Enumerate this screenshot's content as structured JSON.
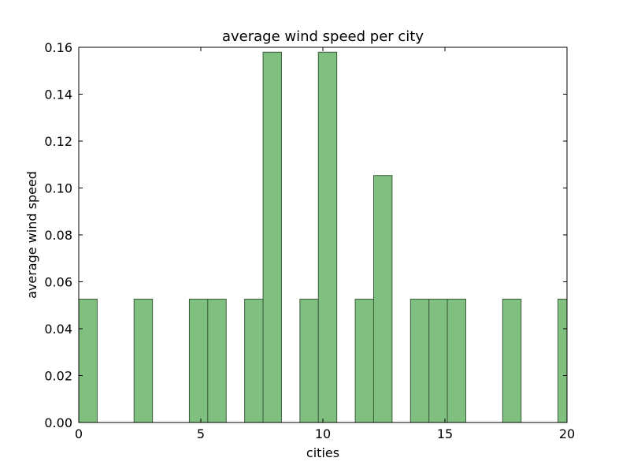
{
  "chart_data": {
    "type": "bar",
    "title": "average wind speed per city",
    "xlabel": "cities",
    "ylabel": "average wind speed",
    "xlim": [
      0,
      20
    ],
    "ylim": [
      0,
      0.16
    ],
    "xticks": [
      "0",
      "5",
      "10",
      "15",
      "20"
    ],
    "xtick_values": [
      0,
      5,
      10,
      15,
      20
    ],
    "yticks": [
      "0.00",
      "0.02",
      "0.04",
      "0.06",
      "0.08",
      "0.10",
      "0.12",
      "0.14",
      "0.16"
    ],
    "ytick_values": [
      0,
      0.02,
      0.04,
      0.06,
      0.08,
      0.1,
      0.12,
      0.14,
      0.16
    ],
    "bar_color": "#7fbf7f",
    "bar_edge_color": "#3d5c3d",
    "bin_width": 0.755,
    "bars": [
      {
        "x": 0.0,
        "value": 0.0526
      },
      {
        "x": 0.755,
        "value": 0.0
      },
      {
        "x": 1.51,
        "value": 0.0
      },
      {
        "x": 2.265,
        "value": 0.0526
      },
      {
        "x": 3.02,
        "value": 0.0
      },
      {
        "x": 3.775,
        "value": 0.0
      },
      {
        "x": 4.53,
        "value": 0.0526
      },
      {
        "x": 5.285,
        "value": 0.0526
      },
      {
        "x": 6.04,
        "value": 0.0
      },
      {
        "x": 6.795,
        "value": 0.0526
      },
      {
        "x": 7.55,
        "value": 0.1579
      },
      {
        "x": 8.305,
        "value": 0.0
      },
      {
        "x": 9.06,
        "value": 0.0526
      },
      {
        "x": 9.815,
        "value": 0.1579
      },
      {
        "x": 10.57,
        "value": 0.0
      },
      {
        "x": 11.325,
        "value": 0.0526
      },
      {
        "x": 12.08,
        "value": 0.1053
      },
      {
        "x": 12.835,
        "value": 0.0
      },
      {
        "x": 13.59,
        "value": 0.0526
      },
      {
        "x": 14.345,
        "value": 0.0526
      },
      {
        "x": 15.1,
        "value": 0.0526
      },
      {
        "x": 15.855,
        "value": 0.0
      },
      {
        "x": 16.61,
        "value": 0.0
      },
      {
        "x": 17.365,
        "value": 0.0526
      },
      {
        "x": 18.12,
        "value": 0.0
      },
      {
        "x": 18.875,
        "value": 0.0
      },
      {
        "x": 19.63,
        "value": 0.0526
      },
      {
        "x": 20.385,
        "value": 0.0
      }
    ]
  }
}
